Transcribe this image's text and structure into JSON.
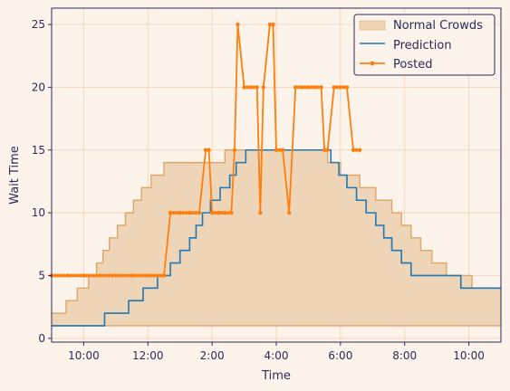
{
  "chart_data": {
    "type": "line",
    "xlabel": "Time",
    "ylabel": "Wait Time",
    "xlim": [
      9.0,
      23.0
    ],
    "ylim": [
      -0.3,
      26.3
    ],
    "x_ticks": [
      {
        "value": 10,
        "label": "10:00"
      },
      {
        "value": 12,
        "label": "12:00"
      },
      {
        "value": 14,
        "label": "2:00"
      },
      {
        "value": 16,
        "label": "4:00"
      },
      {
        "value": 18,
        "label": "6:00"
      },
      {
        "value": 20,
        "label": "8:00"
      },
      {
        "value": 22,
        "label": "10:00"
      }
    ],
    "y_ticks": [
      0,
      5,
      10,
      15,
      20,
      25
    ],
    "grid": true,
    "legend_position": "top-right",
    "colors": {
      "background": "#fcf3ea",
      "grid": "#f3d2b3",
      "band_fill": "#efd5b8",
      "band_edge": "#dda66a",
      "prediction": "#1f77b4",
      "posted": "#ff7f0e",
      "axis": "#2d2a5a",
      "legend_border": "#2d2a5a"
    },
    "series": [
      {
        "name": "Normal Crowds",
        "kind": "band",
        "lower": {
          "x": [
            9.0,
            23.0
          ],
          "y": [
            1,
            1
          ]
        },
        "upper": {
          "x": [
            9.0,
            9.45,
            9.8,
            10.15,
            10.4,
            10.6,
            10.8,
            11.05,
            11.3,
            11.55,
            11.8,
            12.1,
            12.5,
            12.85,
            13.3,
            14.4,
            14.8,
            17.6,
            18.0,
            18.6,
            19.1,
            19.6,
            19.9,
            20.2,
            20.5,
            20.85,
            21.3,
            21.65,
            22.1,
            22.45,
            22.65,
            23.0
          ],
          "y": [
            2,
            3,
            4,
            5,
            6,
            7,
            8,
            9,
            10,
            11,
            12,
            13,
            14,
            14,
            14,
            15,
            15,
            14,
            13,
            12,
            11,
            10,
            9,
            8,
            7,
            6,
            5,
            5,
            4,
            4,
            4,
            4
          ]
        }
      },
      {
        "name": "Prediction",
        "kind": "step",
        "x": [
          9.0,
          10.65,
          11.4,
          11.85,
          12.3,
          12.7,
          13.0,
          13.3,
          13.5,
          13.7,
          13.95,
          14.25,
          14.55,
          14.75,
          15.05,
          15.4,
          15.75,
          16.1,
          16.45,
          16.75,
          17.05,
          17.4,
          17.7,
          17.95,
          18.2,
          18.5,
          18.8,
          19.1,
          19.35,
          19.6,
          19.9,
          20.2,
          20.55,
          20.95,
          21.5,
          21.75,
          22.05,
          22.4,
          23.0
        ],
        "y": [
          1,
          2,
          3,
          4,
          5,
          6,
          7,
          8,
          9,
          10,
          11,
          12,
          13,
          14,
          15,
          15,
          15,
          15,
          15,
          15,
          15,
          15,
          14,
          13,
          12,
          11,
          10,
          9,
          8,
          7,
          6,
          5,
          5,
          5,
          5,
          4,
          4,
          4,
          4
        ]
      },
      {
        "name": "Posted",
        "kind": "line",
        "x": [
          9.0,
          9.5,
          10.0,
          10.5,
          11.0,
          11.5,
          12.0,
          12.5,
          12.7,
          13.0,
          13.3,
          13.6,
          13.8,
          13.9,
          14.0,
          14.2,
          14.4,
          14.6,
          14.7,
          14.8,
          15.0,
          15.2,
          15.4,
          15.5,
          15.6,
          15.8,
          15.9,
          16.0,
          16.2,
          16.4,
          16.6,
          16.8,
          17.0,
          17.2,
          17.4,
          17.5,
          17.6,
          17.8,
          18.0,
          18.2,
          18.4,
          18.6
        ],
        "y": [
          5,
          5,
          5,
          5,
          5,
          5,
          5,
          5,
          10,
          10,
          10,
          10,
          15,
          15,
          10,
          10,
          10,
          10,
          15,
          25,
          20,
          20,
          20,
          10,
          20,
          25,
          25,
          15,
          15,
          10,
          20,
          20,
          20,
          20,
          20,
          15,
          15,
          20,
          20,
          20,
          15,
          15
        ]
      }
    ]
  }
}
